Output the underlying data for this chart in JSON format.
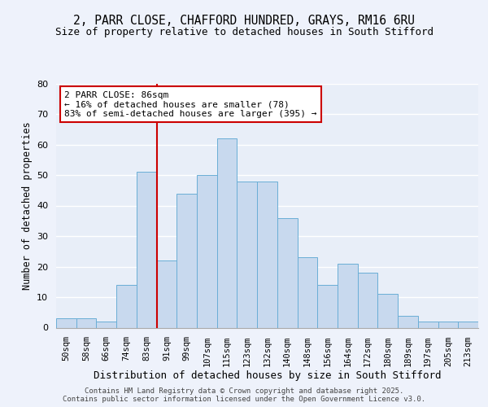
{
  "title_line1": "2, PARR CLOSE, CHAFFORD HUNDRED, GRAYS, RM16 6RU",
  "title_line2": "Size of property relative to detached houses in South Stifford",
  "xlabel": "Distribution of detached houses by size in South Stifford",
  "ylabel": "Number of detached properties",
  "categories": [
    "50sqm",
    "58sqm",
    "66sqm",
    "74sqm",
    "83sqm",
    "91sqm",
    "99sqm",
    "107sqm",
    "115sqm",
    "123sqm",
    "132sqm",
    "140sqm",
    "148sqm",
    "156sqm",
    "164sqm",
    "172sqm",
    "180sqm",
    "189sqm",
    "197sqm",
    "205sqm",
    "213sqm"
  ],
  "values": [
    3,
    3,
    2,
    14,
    51,
    22,
    44,
    50,
    62,
    48,
    48,
    36,
    23,
    14,
    21,
    18,
    11,
    4,
    2,
    2,
    2
  ],
  "bar_color": "#c8d9ee",
  "bar_edge_color": "#6aaed6",
  "vline_color": "#cc0000",
  "annotation_text": "2 PARR CLOSE: 86sqm\n← 16% of detached houses are smaller (78)\n83% of semi-detached houses are larger (395) →",
  "annotation_box_color": "#ffffff",
  "annotation_box_edge": "#cc0000",
  "ylim": [
    0,
    80
  ],
  "yticks": [
    0,
    10,
    20,
    30,
    40,
    50,
    60,
    70,
    80
  ],
  "plot_bg_color": "#e8eef8",
  "fig_bg_color": "#eef2fb",
  "grid_color": "#ffffff",
  "footer_text": "Contains HM Land Registry data © Crown copyright and database right 2025.\nContains public sector information licensed under the Open Government Licence v3.0."
}
